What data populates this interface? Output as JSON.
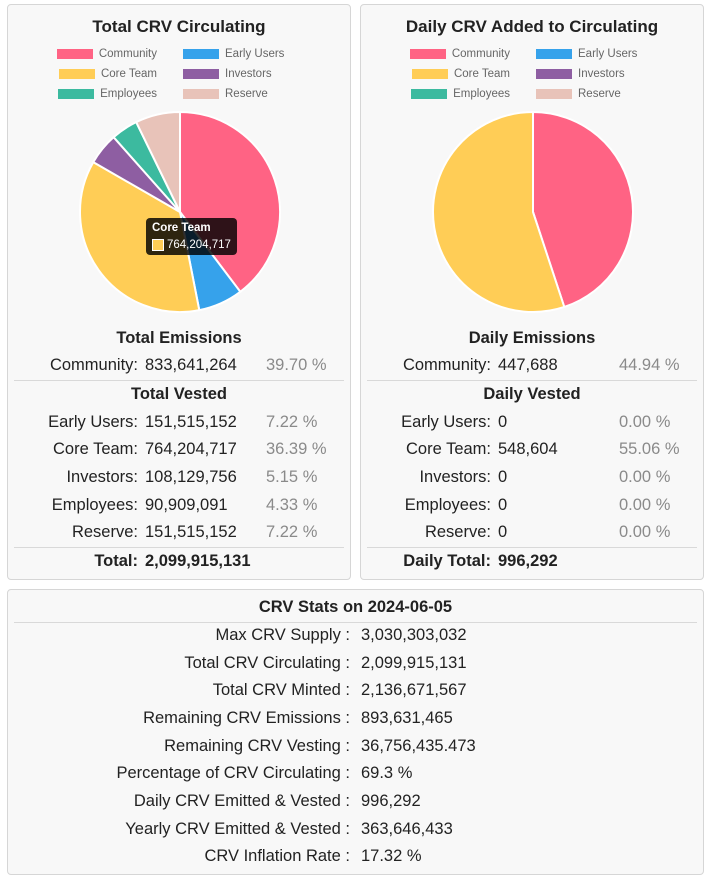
{
  "colors": {
    "Community": "#ff6384",
    "Early Users": "#36a2eb",
    "Core Team": "#ffcd56",
    "Investors": "#8e5ea2",
    "Employees": "#3cba9f",
    "Reserve": "#e8c3b9"
  },
  "left": {
    "title": "Total CRV Circulating",
    "emissions_heading": "Total Emissions",
    "vested_heading": "Total Vested",
    "emissions": [
      {
        "label": "Community:",
        "value": "833,641,264",
        "pct": "39.70 %"
      }
    ],
    "vested": [
      {
        "label": "Early Users:",
        "value": "151,515,152",
        "pct": "7.22 %"
      },
      {
        "label": "Core Team:",
        "value": "764,204,717",
        "pct": "36.39 %"
      },
      {
        "label": "Investors:",
        "value": "108,129,756",
        "pct": "5.15 %"
      },
      {
        "label": "Employees:",
        "value": "90,909,091",
        "pct": "4.33 %"
      },
      {
        "label": "Reserve:",
        "value": "151,515,152",
        "pct": "7.22 %"
      }
    ],
    "total": {
      "label": "Total:",
      "value": "2,099,915,131"
    },
    "tooltip": {
      "title": "Core Team",
      "value": "764,204,717"
    }
  },
  "right": {
    "title": "Daily CRV Added to Circulating",
    "emissions_heading": "Daily Emissions",
    "vested_heading": "Daily Vested",
    "emissions": [
      {
        "label": "Community:",
        "value": "447,688",
        "pct": "44.94 %"
      }
    ],
    "vested": [
      {
        "label": "Early Users:",
        "value": "0",
        "pct": "0.00 %"
      },
      {
        "label": "Core Team:",
        "value": "548,604",
        "pct": "55.06 %"
      },
      {
        "label": "Investors:",
        "value": "0",
        "pct": "0.00 %"
      },
      {
        "label": "Employees:",
        "value": "0",
        "pct": "0.00 %"
      },
      {
        "label": "Reserve:",
        "value": "0",
        "pct": "0.00 %"
      }
    ],
    "total": {
      "label": "Daily Total:",
      "value": "996,292"
    }
  },
  "stats": {
    "title": "CRV Stats on 2024-06-05",
    "rows": [
      {
        "label": "Max CRV Supply :",
        "value": "3,030,303,032"
      },
      {
        "label": "Total CRV Circulating :",
        "value": "2,099,915,131"
      },
      {
        "label": "Total CRV Minted :",
        "value": "2,136,671,567"
      },
      {
        "label": "Remaining CRV Emissions :",
        "value": "893,631,465"
      },
      {
        "label": "Remaining CRV Vesting :",
        "value": "36,756,435.473"
      },
      {
        "label": "Percentage of CRV Circulating :",
        "value": "69.3 %"
      },
      {
        "label": "Daily CRV Emitted & Vested :",
        "value": "996,292"
      },
      {
        "label": "Yearly CRV Emitted & Vested :",
        "value": "363,646,433"
      },
      {
        "label": "CRV Inflation Rate :",
        "value": "17.32 %"
      }
    ]
  },
  "chart_data": [
    {
      "type": "pie",
      "title": "Total CRV Circulating",
      "legend_position": "top",
      "categories": [
        "Community",
        "Early Users",
        "Core Team",
        "Investors",
        "Employees",
        "Reserve"
      ],
      "legend_order": [
        "Community",
        "Early Users",
        "Core Team",
        "Investors",
        "Employees",
        "Reserve"
      ],
      "values": [
        833641264,
        151515152,
        764204717,
        108129756,
        90909091,
        151515152
      ]
    },
    {
      "type": "pie",
      "title": "Daily CRV Added to Circulating",
      "legend_position": "top",
      "categories": [
        "Community",
        "Early Users",
        "Core Team",
        "Investors",
        "Employees",
        "Reserve"
      ],
      "legend_order": [
        "Community",
        "Early Users",
        "Core Team",
        "Investors",
        "Employees",
        "Reserve"
      ],
      "values": [
        447688,
        0,
        548604,
        0,
        0,
        0
      ]
    }
  ]
}
